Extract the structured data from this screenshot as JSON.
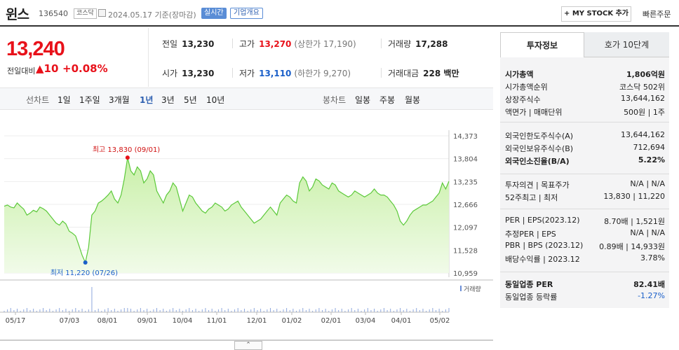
{
  "header": {
    "name": "윈스",
    "code": "136540",
    "market": "코스닥",
    "date": "2024.05.17  기준(장마감)",
    "realtime": "실시간",
    "overview": "기업개요",
    "mystock": "+ MY STOCK 추가",
    "quick_order": "빠른주문"
  },
  "price": {
    "current": "13,240",
    "change_label": "전일대비",
    "change": "▲10",
    "change_pct": "+0.08%"
  },
  "quote": {
    "prev_label": "전일",
    "prev": "13,230",
    "high_label": "고가",
    "high": "13,270",
    "upper_limit": "(상한가 17,190)",
    "volume_label": "거래량",
    "volume": "17,288",
    "open_label": "시가",
    "open": "13,230",
    "low_label": "저가",
    "low": "13,110",
    "lower_limit": "(하한가 9,270)",
    "amount_label": "거래대금",
    "amount": "228 백만"
  },
  "chart_tabs": {
    "line_label": "선차트",
    "periods": [
      "1일",
      "1주일",
      "3개월",
      "1년",
      "3년",
      "5년",
      "10년"
    ],
    "selected": "1년",
    "candle_label": "봉차트",
    "candles": [
      "일봉",
      "주봉",
      "월봉"
    ]
  },
  "chart_data": {
    "type": "area",
    "yticks": [
      "14,373",
      "13,804",
      "13,235",
      "12,666",
      "12,097",
      "11,528",
      "10,959"
    ],
    "ylim": [
      10959,
      14373
    ],
    "xticks": [
      "05/17",
      "07/03",
      "08/01",
      "09/01",
      "10/04",
      "11/01",
      "12/01",
      "01/02",
      "02/01",
      "03/04",
      "04/01",
      "05/02"
    ],
    "max_label": "최고 13,830 (09/01)",
    "min_label": "최저 11,220 (07/26)",
    "volume_label": "거래량",
    "values": [
      12620,
      12650,
      12600,
      12580,
      12700,
      12620,
      12550,
      12400,
      12450,
      12520,
      12480,
      12600,
      12560,
      12500,
      12400,
      12300,
      12200,
      12150,
      12250,
      12180,
      12000,
      11950,
      11880,
      11650,
      11400,
      11220,
      11600,
      12400,
      12500,
      12700,
      12750,
      12820,
      12900,
      13000,
      12800,
      12700,
      12900,
      13300,
      13830,
      13500,
      13400,
      13600,
      13500,
      13200,
      13300,
      13500,
      13400,
      13000,
      12850,
      12700,
      12900,
      13000,
      13200,
      13100,
      12800,
      12500,
      12700,
      12900,
      12850,
      12700,
      12600,
      12500,
      12450,
      12550,
      12600,
      12700,
      12650,
      12600,
      12500,
      12550,
      12650,
      12700,
      12750,
      12600,
      12500,
      12400,
      12300,
      12200,
      12250,
      12300,
      12400,
      12500,
      12600,
      12500,
      12400,
      12700,
      12800,
      12900,
      12850,
      12750,
      12700,
      13200,
      13350,
      13250,
      13000,
      13100,
      13300,
      13250,
      13150,
      13100,
      13050,
      13200,
      13150,
      13000,
      12950,
      12900,
      12850,
      12900,
      13000,
      12950,
      12900,
      12850,
      12900,
      12950,
      13050,
      12950,
      12900,
      12900,
      12850,
      12750,
      12650,
      12500,
      12250,
      12150,
      12250,
      12400,
      12500,
      12550,
      12600,
      12650,
      12650,
      12700,
      12750,
      12850,
      12950,
      13200,
      13050,
      13240
    ]
  },
  "panel": {
    "tab_on": "투자정보",
    "tab_off": "호가 10단계",
    "rows": [
      {
        "k": "시가총액",
        "v": "1,806억원",
        "bold": true
      },
      {
        "k": "시가총액순위",
        "v": "코스닥 502위"
      },
      {
        "k": "상장주식수",
        "v": "13,644,162"
      },
      {
        "k": "액면가 | 매매단위",
        "v": "500원 | 1주"
      },
      {
        "k": "외국인한도주식수(A)",
        "v": "13,644,162"
      },
      {
        "k": "외국인보유주식수(B)",
        "v": "712,694"
      },
      {
        "k": "외국인소진율(B/A)",
        "v": "5.22%",
        "bold": true
      },
      {
        "k": "투자의견 | 목표주가",
        "v": "N/A | N/A"
      },
      {
        "k": "52주최고 | 최저",
        "v": "13,830 | 11,220"
      },
      {
        "k": "PER | EPS(2023.12)",
        "v": "8.70배 | 1,521원"
      },
      {
        "k": "추정PER | EPS",
        "v": "N/A | N/A"
      },
      {
        "k": "PBR | BPS (2023.12)",
        "v": "0.89배 | 14,933원"
      },
      {
        "k": "배당수익률 | 2023.12",
        "v": "3.78%"
      },
      {
        "k": "동일업종 PER",
        "v": "82.41배",
        "bold": true
      },
      {
        "k": "동일업종 등락률",
        "v": "-1.27%",
        "blue": true
      }
    ]
  }
}
